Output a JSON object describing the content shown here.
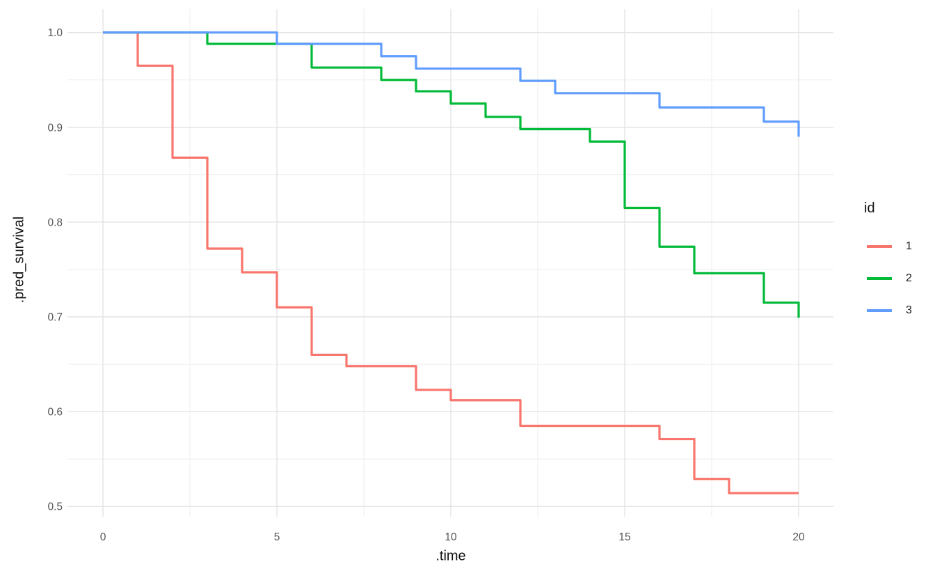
{
  "figure": {
    "kind": "step-survival-plot",
    "title": ""
  },
  "colors": {
    "background": "#FFFFFF",
    "grid_major": "#E3E3E3",
    "grid_minor": "#EFEFEF",
    "tick_text": "#555555",
    "title_text": "#111111",
    "series_red": "#F8766D",
    "series_green": "#00BA38",
    "series_blue": "#619CFF"
  },
  "axes": {
    "x": {
      "title": ".time",
      "ticks": [
        {
          "v": 0,
          "label": "0"
        },
        {
          "v": 5,
          "label": "5"
        },
        {
          "v": 10,
          "label": "10"
        },
        {
          "v": 15,
          "label": "15"
        },
        {
          "v": 20,
          "label": "20"
        }
      ],
      "minor": [
        2.5,
        7.5,
        12.5,
        17.5
      ]
    },
    "y": {
      "title": ".pred_survival",
      "ticks": [
        {
          "v": 1.0,
          "label": "1.0"
        },
        {
          "v": 0.9,
          "label": "0.9"
        },
        {
          "v": 0.8,
          "label": "0.8"
        },
        {
          "v": 0.7,
          "label": "0.7"
        },
        {
          "v": 0.6,
          "label": "0.6"
        },
        {
          "v": 0.5,
          "label": "0.5"
        }
      ],
      "minor": [
        0.55,
        0.65,
        0.75,
        0.85,
        0.95
      ]
    }
  },
  "legend": {
    "title": "id",
    "entries": [
      {
        "label": "1",
        "color": "#F8766D"
      },
      {
        "label": "2",
        "color": "#00BA38"
      },
      {
        "label": "3",
        "color": "#619CFF"
      }
    ]
  },
  "chart_data": {
    "type": "line",
    "subtype": "step-after",
    "title": "",
    "xlabel": ".time",
    "ylabel": ".pred_survival",
    "xlim": [
      0,
      20
    ],
    "ylim": [
      0.5,
      1.0
    ],
    "grid": "major+minor",
    "legend_position": "right",
    "legend_title": "id",
    "x_end": 20,
    "series": [
      {
        "name": "1",
        "color": "#F8766D",
        "points": [
          [
            0,
            1.0
          ],
          [
            1,
            0.965
          ],
          [
            2,
            0.868
          ],
          [
            3,
            0.772
          ],
          [
            4,
            0.747
          ],
          [
            5,
            0.71
          ],
          [
            6,
            0.66
          ],
          [
            7,
            0.648
          ],
          [
            9,
            0.623
          ],
          [
            10,
            0.612
          ],
          [
            12,
            0.585
          ],
          [
            16,
            0.571
          ],
          [
            17,
            0.529
          ],
          [
            18,
            0.514
          ]
        ]
      },
      {
        "name": "2",
        "color": "#00BA38",
        "points": [
          [
            0,
            1.0
          ],
          [
            3,
            0.988
          ],
          [
            6,
            0.963
          ],
          [
            8,
            0.95
          ],
          [
            9,
            0.938
          ],
          [
            10,
            0.925
          ],
          [
            11,
            0.911
          ],
          [
            12,
            0.898
          ],
          [
            14,
            0.885
          ],
          [
            15,
            0.815
          ],
          [
            16,
            0.774
          ],
          [
            17,
            0.746
          ],
          [
            19,
            0.715
          ],
          [
            20,
            0.699
          ]
        ]
      },
      {
        "name": "3",
        "color": "#619CFF",
        "points": [
          [
            0,
            1.0
          ],
          [
            5,
            0.988
          ],
          [
            8,
            0.975
          ],
          [
            9,
            0.962
          ],
          [
            12,
            0.949
          ],
          [
            13,
            0.936
          ],
          [
            16,
            0.921
          ],
          [
            19,
            0.906
          ],
          [
            20,
            0.89
          ]
        ]
      }
    ]
  }
}
